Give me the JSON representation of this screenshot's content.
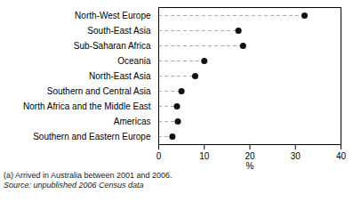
{
  "chart_data": {
    "type": "lollipop",
    "orientation": "horizontal",
    "categories": [
      "North-West Europe",
      "South-East Asia",
      "Sub-Saharan Africa",
      "Oceania",
      "North-East Asia",
      "Southern and Central Asia",
      "North Africa and the Middle East",
      "Americas",
      "Southern and Eastern Europe"
    ],
    "values": [
      32.0,
      17.5,
      18.5,
      10.0,
      8.0,
      5.0,
      4.0,
      4.2,
      3.0
    ],
    "xlim": [
      0,
      40
    ],
    "xticks": [
      0,
      10,
      20,
      30,
      40
    ],
    "xlabel": "%",
    "color": "#111111",
    "line_style": "dashed",
    "grid": false,
    "annotations": [
      "(a) Arrived in Australia between 2001 and 2006.",
      "Source: unpublished 2006 Census data"
    ]
  }
}
